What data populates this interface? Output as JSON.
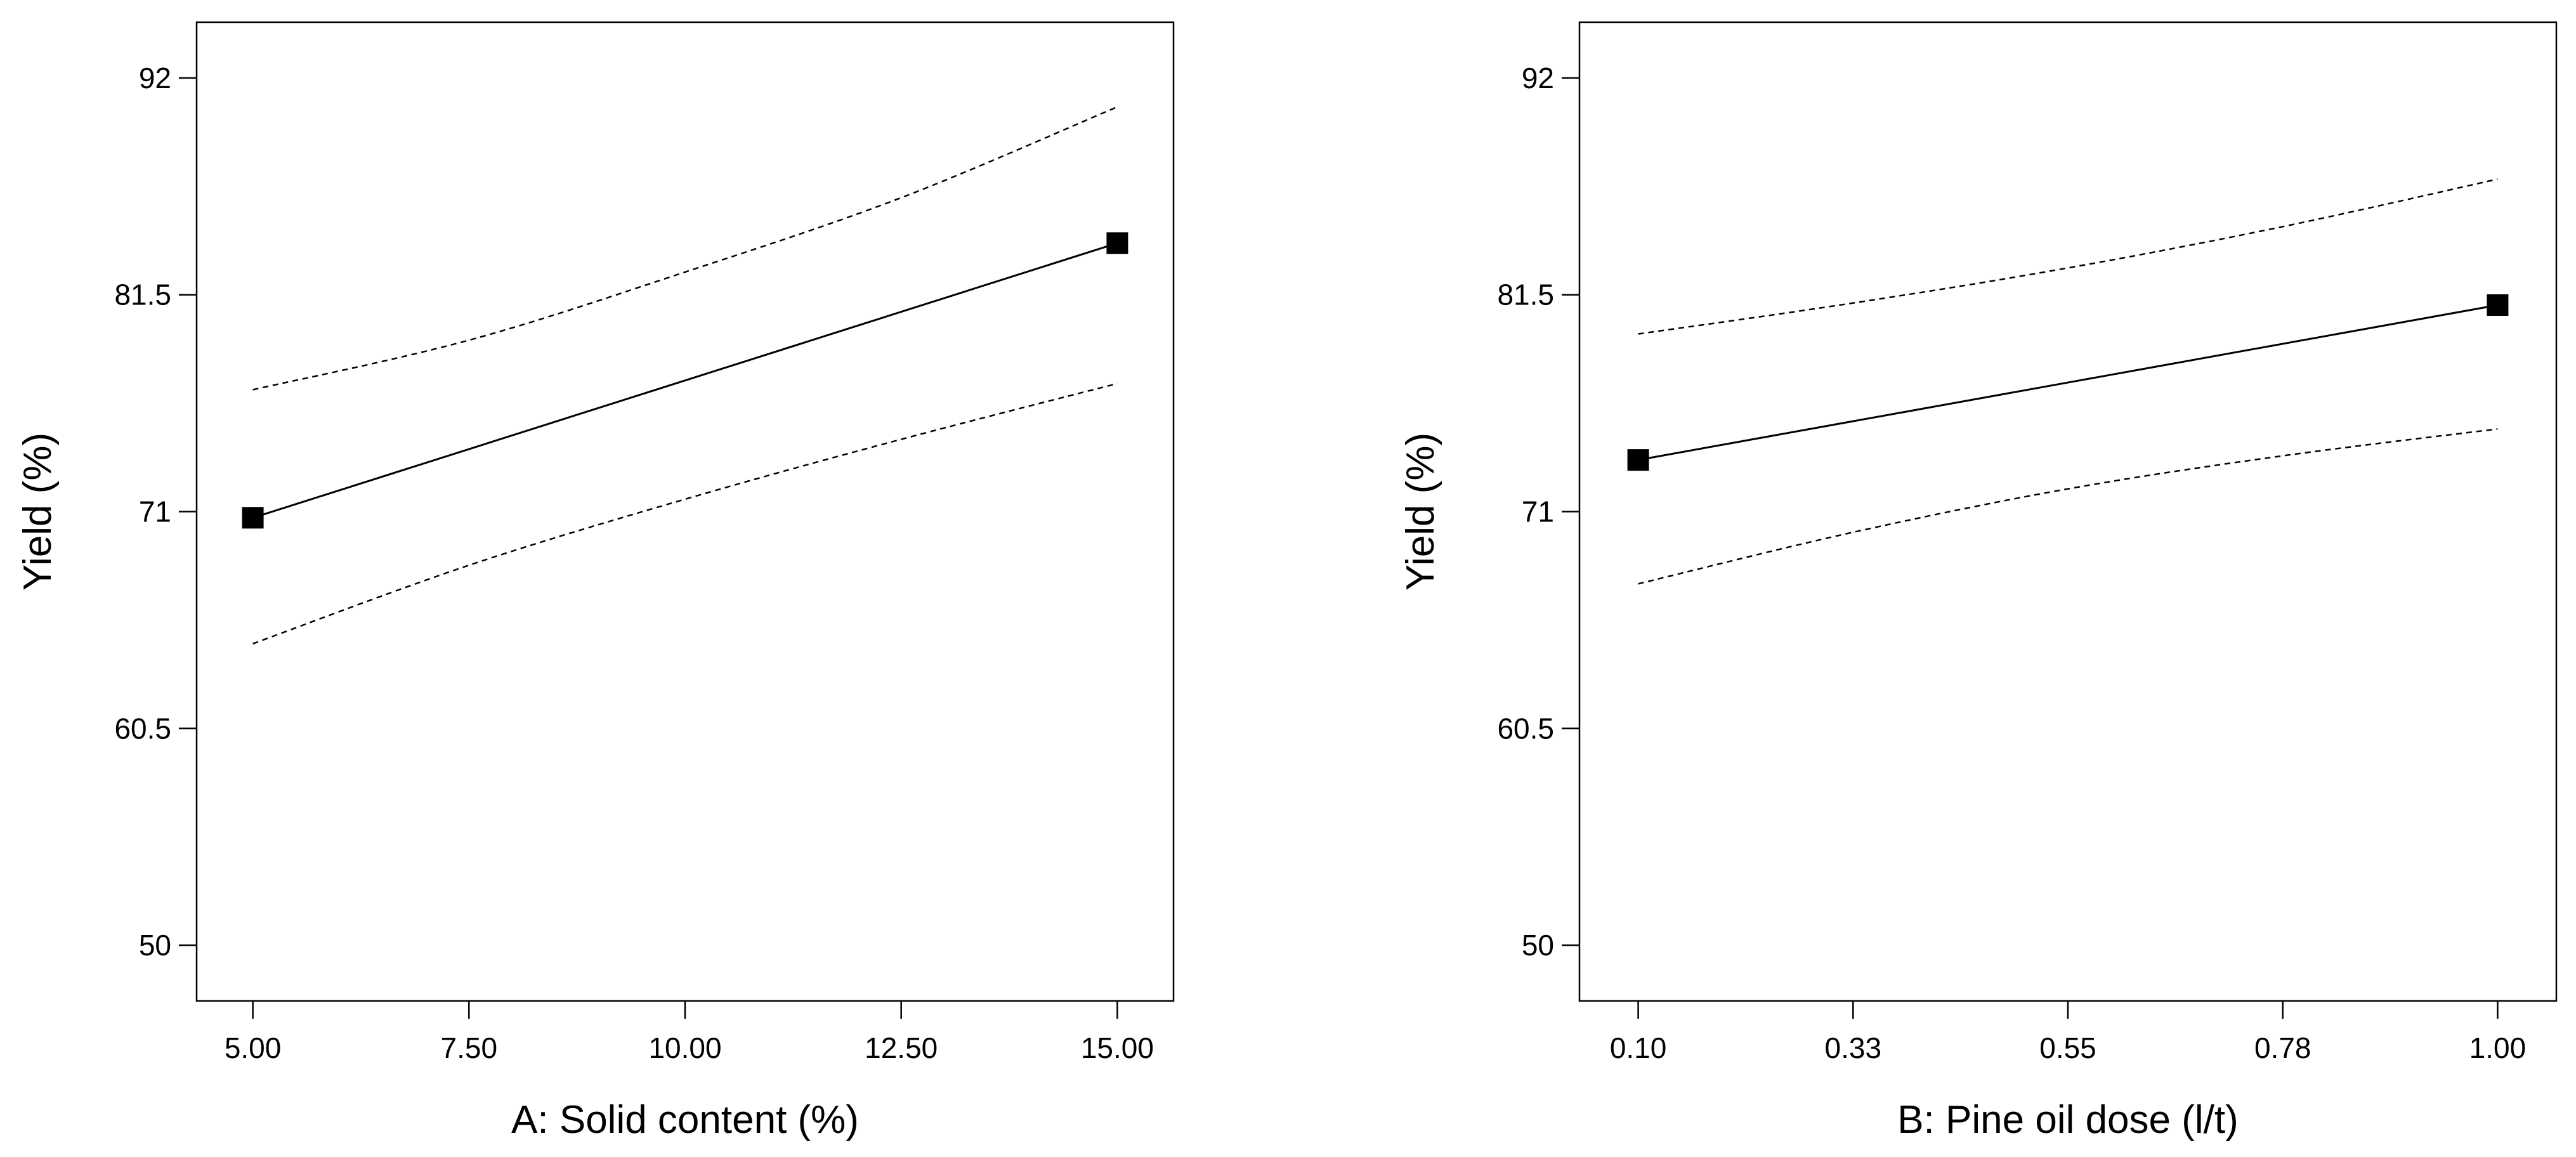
{
  "chart_data": [
    {
      "type": "line",
      "xlabel": "A: Solid content (%)",
      "ylabel": "Yield (%)",
      "xlim": [
        4.35,
        15.65
      ],
      "ylim": [
        47.3,
        94.7
      ],
      "x_ticks": [
        "5.00",
        "7.50",
        "10.00",
        "12.50",
        "15.00"
      ],
      "x_tick_values": [
        5,
        7.5,
        10,
        12.5,
        15
      ],
      "y_ticks": [
        "50",
        "60.5",
        "71",
        "81.5",
        "92"
      ],
      "y_tick_values": [
        50,
        60.5,
        71,
        81.5,
        92
      ],
      "grid": false,
      "series": [
        {
          "style": "solid",
          "marker": "square",
          "x": [
            5,
            15
          ],
          "y": [
            70.7,
            84.0
          ]
        },
        {
          "style": "dashed",
          "x": [
            5,
            7.5,
            10,
            12.5,
            15
          ],
          "y": [
            76.9,
            79.3,
            82.6,
            86.2,
            90.6
          ]
        },
        {
          "style": "dashed",
          "x": [
            5,
            7.5,
            10,
            12.5,
            15
          ],
          "y": [
            64.6,
            68.4,
            71.6,
            74.5,
            77.2
          ]
        }
      ]
    },
    {
      "type": "line",
      "xlabel": "B: Pine oil dose (l/t)",
      "ylabel": "Yield (%)",
      "xlim": [
        0.0385,
        1.0615
      ],
      "ylim": [
        47.3,
        94.7
      ],
      "x_ticks": [
        "0.10",
        "0.33",
        "0.55",
        "0.78",
        "1.00"
      ],
      "x_tick_values": [
        0.1,
        0.325,
        0.55,
        0.775,
        1.0
      ],
      "y_ticks": [
        "50",
        "60.5",
        "71",
        "81.5",
        "92"
      ],
      "y_tick_values": [
        50,
        60.5,
        71,
        81.5,
        92
      ],
      "grid": false,
      "series": [
        {
          "style": "solid",
          "marker": "square",
          "x": [
            0.1,
            1.0
          ],
          "y": [
            73.5,
            81.0
          ]
        },
        {
          "style": "dashed",
          "x": [
            0.1,
            0.325,
            0.55,
            0.775,
            1.0
          ],
          "y": [
            79.6,
            81.1,
            82.8,
            84.8,
            87.1
          ]
        },
        {
          "style": "dashed",
          "x": [
            0.1,
            0.325,
            0.55,
            0.775,
            1.0
          ],
          "y": [
            67.5,
            70.0,
            72.1,
            73.7,
            75.0
          ]
        }
      ]
    }
  ]
}
